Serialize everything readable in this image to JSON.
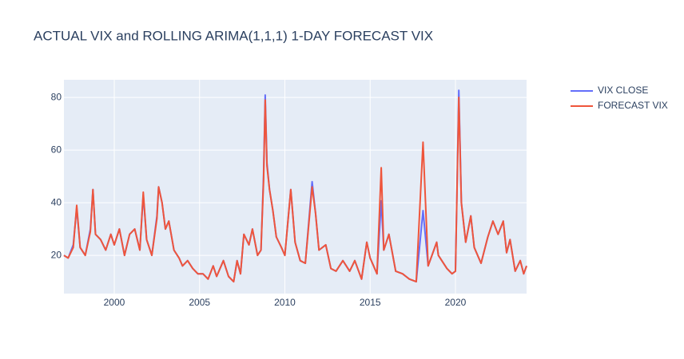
{
  "chart_data": {
    "type": "line",
    "title": "ACTUAL VIX and ROLLING ARIMA(1,1,1) 1-DAY FORECAST VIX",
    "x": [
      1997.05,
      1997.3,
      1997.6,
      1997.8,
      1998.0,
      1998.3,
      1998.6,
      1998.75,
      1998.9,
      1999.2,
      1999.5,
      1999.8,
      2000.0,
      2000.3,
      2000.6,
      2000.9,
      2001.2,
      2001.5,
      2001.7,
      2001.9,
      2002.2,
      2002.5,
      2002.6,
      2002.8,
      2003.0,
      2003.2,
      2003.5,
      2003.8,
      2004.0,
      2004.3,
      2004.6,
      2004.9,
      2005.2,
      2005.5,
      2005.8,
      2006.0,
      2006.4,
      2006.7,
      2007.0,
      2007.2,
      2007.4,
      2007.6,
      2007.9,
      2008.1,
      2008.4,
      2008.6,
      2008.75,
      2008.85,
      2008.95,
      2009.1,
      2009.3,
      2009.5,
      2009.8,
      2010.0,
      2010.35,
      2010.6,
      2010.9,
      2011.2,
      2011.6,
      2011.8,
      2012.0,
      2012.4,
      2012.7,
      2013.0,
      2013.4,
      2013.8,
      2014.1,
      2014.5,
      2014.8,
      2015.0,
      2015.4,
      2015.65,
      2015.8,
      2016.1,
      2016.5,
      2016.9,
      2017.3,
      2017.7,
      2018.1,
      2018.4,
      2018.9,
      2019.0,
      2019.5,
      2019.8,
      2020.0,
      2020.2,
      2020.35,
      2020.6,
      2020.9,
      2021.1,
      2021.5,
      2021.9,
      2022.2,
      2022.5,
      2022.8,
      2023.0,
      2023.2,
      2023.5,
      2023.8,
      2024.0,
      2024.17
    ],
    "series": [
      {
        "name": "VIX CLOSE",
        "color": "#636efa",
        "values": [
          20,
          19,
          24,
          38,
          23,
          20,
          30,
          45,
          28,
          26,
          22,
          28,
          24,
          30,
          20,
          28,
          30,
          22,
          43,
          26,
          20,
          35,
          46,
          40,
          30,
          33,
          22,
          19,
          16,
          18,
          15,
          13,
          13,
          11,
          16,
          12,
          18,
          12,
          10,
          18,
          13,
          28,
          24,
          30,
          20,
          22,
          50,
          80.9,
          55,
          45,
          37,
          27,
          23,
          20,
          45,
          25,
          18,
          17,
          48,
          36,
          22,
          24,
          15,
          14,
          18,
          14,
          18,
          11,
          25,
          19,
          13,
          40.7,
          22,
          28,
          14,
          13,
          11,
          10,
          37,
          16,
          25,
          20,
          15,
          13,
          14,
          82.7,
          40,
          25,
          35,
          23,
          17,
          27,
          33,
          28,
          33,
          21,
          26,
          14,
          18,
          13,
          16
        ]
      },
      {
        "name": "FORECAST VIX",
        "color": "#EF553B",
        "values": [
          20,
          19,
          23,
          39,
          23,
          20,
          29,
          45,
          28,
          26,
          22,
          28,
          24,
          30,
          20,
          28,
          30,
          22,
          44,
          26,
          20,
          34,
          46,
          40,
          30,
          33,
          22,
          19,
          16,
          18,
          15,
          13,
          13,
          11,
          16,
          12,
          18,
          12,
          10,
          18,
          13,
          28,
          24,
          30,
          20,
          22,
          48,
          79,
          54,
          45,
          37,
          27,
          23,
          20,
          45,
          25,
          18,
          17,
          46,
          36,
          22,
          24,
          15,
          14,
          18,
          14,
          18,
          11,
          25,
          19,
          13,
          53.3,
          22,
          28,
          14,
          13,
          11,
          10,
          63,
          16,
          25,
          20,
          15,
          13,
          14,
          80,
          40,
          25,
          35,
          23,
          17,
          27,
          33,
          28,
          33,
          21,
          26,
          14,
          18,
          13,
          16
        ]
      }
    ],
    "xlim": [
      1997.05,
      2024.17
    ],
    "xticks": [
      2000,
      2005,
      2010,
      2015,
      2020
    ],
    "ylim": [
      5.5,
      86.7
    ],
    "yticks": [
      20,
      40,
      60,
      80
    ],
    "grid": true,
    "legend": "right"
  }
}
